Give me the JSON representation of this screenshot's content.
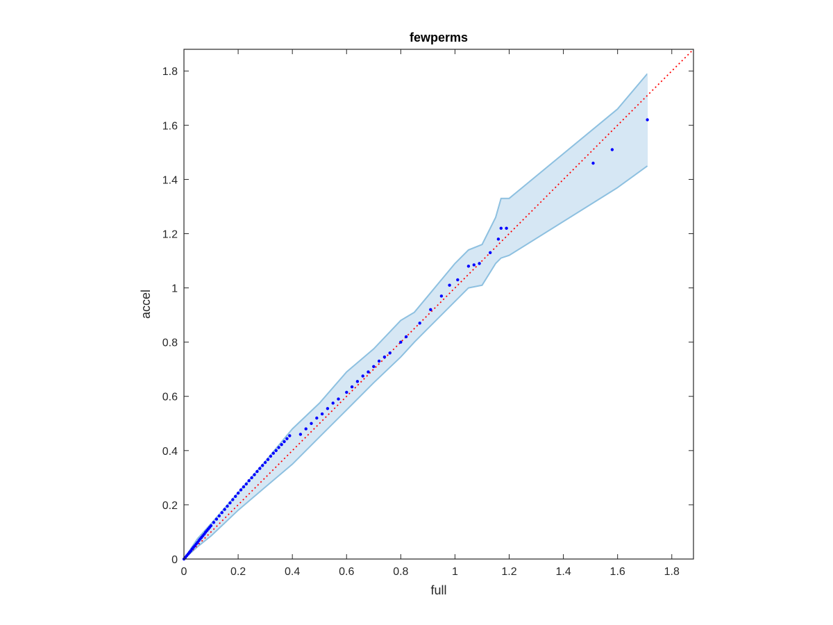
{
  "chart_data": {
    "type": "scatter",
    "title": "fewperms",
    "xlabel": "full",
    "ylabel": "accel",
    "xlim": [
      0,
      1.88
    ],
    "ylim": [
      0,
      1.88
    ],
    "grid": false,
    "xticks": [
      "0",
      "0.2",
      "0.4",
      "0.6",
      "0.8",
      "1",
      "1.2",
      "1.4",
      "1.6",
      "1.8"
    ],
    "yticks": [
      "0",
      "0.2",
      "0.4",
      "0.6",
      "0.8",
      "1",
      "1.2",
      "1.4",
      "1.6",
      "1.8"
    ],
    "colors": {
      "points": "#0000ff",
      "reference_line": "#ff0000",
      "band_fill": "#d6e7f4",
      "band_edge": "#8dc0e0",
      "axes": "#262626"
    },
    "reference_line": {
      "x": [
        0,
        1.88
      ],
      "y": [
        0,
        1.88
      ],
      "style": "dotted"
    },
    "band": {
      "x": [
        0,
        0.05,
        0.1,
        0.2,
        0.3,
        0.4,
        0.5,
        0.6,
        0.7,
        0.8,
        0.85,
        0.9,
        1.0,
        1.05,
        1.1,
        1.15,
        1.17,
        1.2,
        1.6,
        1.71
      ],
      "upper": [
        0,
        0.075,
        0.13,
        0.245,
        0.36,
        0.48,
        0.575,
        0.69,
        0.775,
        0.88,
        0.91,
        0.97,
        1.09,
        1.14,
        1.16,
        1.26,
        1.33,
        1.33,
        1.66,
        1.79
      ],
      "lower": [
        0,
        0.045,
        0.085,
        0.18,
        0.265,
        0.35,
        0.45,
        0.55,
        0.65,
        0.745,
        0.8,
        0.85,
        0.95,
        1.0,
        1.01,
        1.09,
        1.11,
        1.12,
        1.37,
        1.45
      ]
    },
    "points": {
      "x": [
        0,
        0.005,
        0.01,
        0.015,
        0.02,
        0.025,
        0.03,
        0.035,
        0.04,
        0.045,
        0.05,
        0.055,
        0.06,
        0.065,
        0.07,
        0.075,
        0.08,
        0.085,
        0.09,
        0.095,
        0.1,
        0.11,
        0.12,
        0.13,
        0.14,
        0.15,
        0.16,
        0.17,
        0.18,
        0.19,
        0.2,
        0.21,
        0.22,
        0.23,
        0.24,
        0.25,
        0.26,
        0.27,
        0.28,
        0.29,
        0.3,
        0.31,
        0.32,
        0.33,
        0.34,
        0.35,
        0.36,
        0.37,
        0.38,
        0.39,
        0.43,
        0.45,
        0.47,
        0.49,
        0.51,
        0.53,
        0.55,
        0.57,
        0.6,
        0.62,
        0.64,
        0.66,
        0.68,
        0.7,
        0.72,
        0.74,
        0.76,
        0.8,
        0.82,
        0.87,
        0.91,
        0.95,
        0.98,
        1.01,
        1.05,
        1.07,
        1.09,
        1.13,
        1.16,
        1.17,
        1.19,
        1.51,
        1.58,
        1.71
      ],
      "y": [
        0,
        0.006,
        0.012,
        0.018,
        0.024,
        0.03,
        0.037,
        0.043,
        0.049,
        0.055,
        0.061,
        0.068,
        0.074,
        0.08,
        0.086,
        0.092,
        0.099,
        0.105,
        0.111,
        0.117,
        0.123,
        0.135,
        0.147,
        0.159,
        0.171,
        0.183,
        0.195,
        0.207,
        0.219,
        0.231,
        0.243,
        0.255,
        0.266,
        0.277,
        0.289,
        0.3,
        0.311,
        0.323,
        0.334,
        0.345,
        0.356,
        0.367,
        0.379,
        0.39,
        0.4,
        0.411,
        0.422,
        0.433,
        0.444,
        0.455,
        0.46,
        0.48,
        0.5,
        0.52,
        0.535,
        0.555,
        0.575,
        0.59,
        0.615,
        0.635,
        0.655,
        0.675,
        0.69,
        0.71,
        0.73,
        0.745,
        0.76,
        0.8,
        0.82,
        0.87,
        0.92,
        0.97,
        1.01,
        1.03,
        1.08,
        1.085,
        1.09,
        1.13,
        1.18,
        1.22,
        1.22,
        1.46,
        1.51,
        1.62
      ]
    }
  }
}
